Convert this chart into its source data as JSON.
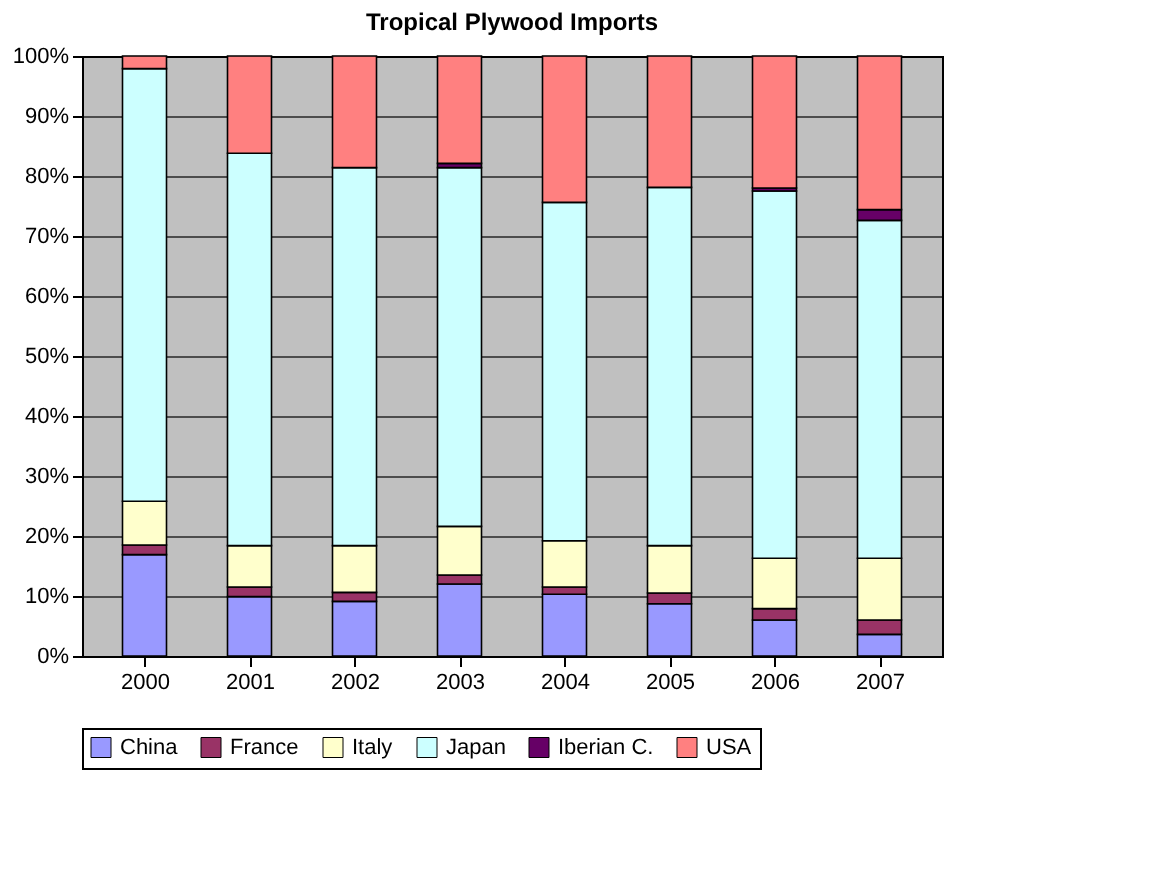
{
  "chart_data": {
    "type": "bar",
    "stacked": true,
    "title": "Tropical Plywood Imports",
    "categories": [
      "2000",
      "2001",
      "2002",
      "2003",
      "2004",
      "2005",
      "2006",
      "2007"
    ],
    "series": [
      {
        "name": "China",
        "color": "#9999ff",
        "values": [
          16.9,
          9.9,
          9.1,
          12.0,
          10.3,
          8.7,
          6.0,
          3.6
        ]
      },
      {
        "name": "France",
        "color": "#993366",
        "values": [
          1.6,
          1.6,
          1.5,
          1.5,
          1.2,
          1.8,
          1.9,
          2.4
        ]
      },
      {
        "name": "Italy",
        "color": "#ffffcc",
        "values": [
          7.3,
          6.9,
          7.8,
          8.1,
          7.7,
          7.9,
          8.4,
          10.3
        ]
      },
      {
        "name": "Japan",
        "color": "#ccffff",
        "values": [
          72.1,
          65.4,
          63.0,
          59.8,
          56.4,
          59.7,
          61.2,
          56.3
        ]
      },
      {
        "name": "Iberian C.",
        "color": "#660066",
        "values": [
          null,
          null,
          null,
          0.7,
          null,
          null,
          0.5,
          1.8
        ]
      },
      {
        "name": "USA",
        "color": "#ff8080",
        "values": [
          2.1,
          16.2,
          18.6,
          17.9,
          24.4,
          21.9,
          22.0,
          25.6
        ]
      }
    ],
    "ylim": [
      0,
      100
    ],
    "yticks": [
      {
        "value": 0,
        "label": "0%"
      },
      {
        "value": 10,
        "label": "10%"
      },
      {
        "value": 20,
        "label": "20%"
      },
      {
        "value": 30,
        "label": "30%"
      },
      {
        "value": 40,
        "label": "40%"
      },
      {
        "value": 50,
        "label": "50%"
      },
      {
        "value": 60,
        "label": "60%"
      },
      {
        "value": 70,
        "label": "70%"
      },
      {
        "value": 80,
        "label": "80%"
      },
      {
        "value": 90,
        "label": "90%"
      },
      {
        "value": 100,
        "label": "100%"
      }
    ],
    "grid": "y",
    "legend": "bottom"
  }
}
